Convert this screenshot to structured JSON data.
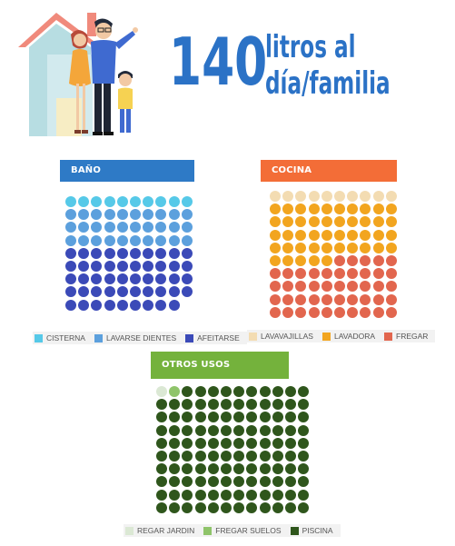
{
  "headline": {
    "number": "140",
    "line1": "litros al",
    "line2": "día/familia",
    "color": "#2b72c6"
  },
  "illustration": {
    "house_roof_color": "#f08a7c",
    "house_wall_color": "#b7dde2",
    "house_door_color": "#f7edc4",
    "person_shirt_color": "#3f6ad0",
    "person_dress_color": "#f4a63a",
    "child_shirt_color": "#f6d252"
  },
  "chart_data": [
    {
      "type": "waffle",
      "title": "BAÑO",
      "header_color": "#2e7ac6",
      "total_dots": 89,
      "columns": 10,
      "series": [
        {
          "name": "CISTERNA",
          "dots": 10,
          "color": "#56c9e8"
        },
        {
          "name": "LAVARSE DIENTES",
          "dots": 30,
          "color": "#5ca0dd"
        },
        {
          "name": "AFEITARSE",
          "dots": 49,
          "color": "#3b4ab8"
        }
      ]
    },
    {
      "type": "waffle",
      "title": "COCINA",
      "header_color": "#f36d37",
      "total_dots": 100,
      "columns": 10,
      "series": [
        {
          "name": "LAVAVAJILLAS",
          "dots": 10,
          "color": "#f3dcb2"
        },
        {
          "name": "LAVADORA",
          "dots": 45,
          "color": "#f2a51f"
        },
        {
          "name": "FREGAR",
          "dots": 45,
          "color": "#e2664e"
        }
      ]
    },
    {
      "type": "waffle",
      "title": "OTROS USOS",
      "header_color": "#74b23c",
      "total_dots": 120,
      "columns": 12,
      "series": [
        {
          "name": "REGAR JARDIN",
          "dots": 1,
          "color": "#dbe8d4"
        },
        {
          "name": "FREGAR SUELOS",
          "dots": 1,
          "color": "#8fc46a"
        },
        {
          "name": "PISCINA",
          "dots": 118,
          "color": "#2f561c"
        }
      ]
    }
  ]
}
